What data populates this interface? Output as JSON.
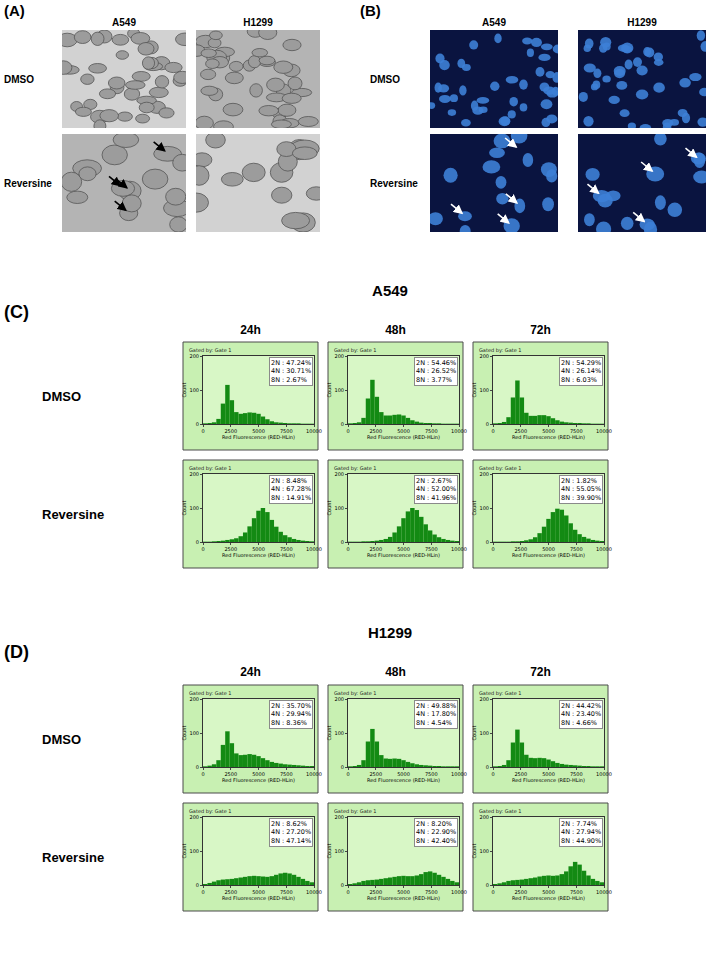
{
  "figure": {
    "panels": [
      {
        "label": "(A)",
        "columns": [
          "A549",
          "H1299"
        ],
        "rows": [
          "DMSO",
          "Reversine"
        ]
      },
      {
        "label": "(B)",
        "columns": [
          "A549",
          "H1299"
        ],
        "rows": [
          "DMSO",
          "Reversine"
        ]
      }
    ],
    "sections": [
      {
        "label": "(C)",
        "title": "A549",
        "columns": [
          "24h",
          "48h",
          "72h"
        ],
        "rows": [
          "DMSO",
          "Reversine"
        ]
      },
      {
        "label": "(D)",
        "title": "H1299",
        "columns": [
          "24h",
          "48h",
          "72h"
        ],
        "rows": [
          "DMSO",
          "Reversine"
        ]
      }
    ]
  },
  "chart_data": [
    {
      "type": "histogram",
      "subtitle": "Gated by: Gate 1",
      "xlabel": "Red Fluorescence (RED-HLin)",
      "ylabel": "Count",
      "bins": [
        0,
        400,
        800,
        1200,
        1600,
        2000,
        2400,
        2800,
        3200,
        3600,
        4000,
        4400,
        4800,
        5200,
        5600,
        6000,
        6400,
        6800,
        7200,
        7600,
        8000,
        8400,
        8800,
        9200,
        9600,
        10000
      ],
      "counts": [
        2,
        3,
        5,
        15,
        60,
        115,
        70,
        35,
        30,
        32,
        34,
        33,
        30,
        22,
        14,
        8,
        5,
        4,
        3,
        2,
        2,
        2,
        1,
        1,
        1
      ],
      "color": "#138a13",
      "xlim": [
        0,
        10000
      ],
      "ylim": [
        0,
        200
      ],
      "xticks": [
        0,
        2500,
        5000,
        7500,
        10000
      ],
      "yticks": [
        0,
        100,
        200
      ],
      "annotations": [
        "2N : 47.24%",
        "4N : 30.71%",
        "8N : 2.67%"
      ]
    },
    {
      "type": "histogram",
      "subtitle": "Gated by: Gate 1",
      "xlabel": "Red Fluorescence (RED-HLin)",
      "ylabel": "Count",
      "bins": [
        0,
        400,
        800,
        1200,
        1600,
        2000,
        2400,
        2800,
        3200,
        3600,
        4000,
        4400,
        4800,
        5200,
        5600,
        6000,
        6400,
        6800,
        7200,
        7600,
        8000,
        8400,
        8800,
        9200,
        9600,
        10000
      ],
      "counts": [
        2,
        3,
        5,
        18,
        75,
        130,
        80,
        35,
        25,
        25,
        27,
        28,
        25,
        18,
        11,
        7,
        4,
        3,
        3,
        2,
        2,
        1,
        1,
        1,
        1
      ],
      "color": "#138a13",
      "xlim": [
        0,
        10000
      ],
      "ylim": [
        0,
        200
      ],
      "xticks": [
        0,
        2500,
        5000,
        7500,
        10000
      ],
      "yticks": [
        0,
        100,
        200
      ],
      "annotations": [
        "2N : 54.46%",
        "4N : 26.52%",
        "8N : 3.77%"
      ]
    },
    {
      "type": "histogram",
      "subtitle": "Gated by: Gate 1",
      "xlabel": "Red Fluorescence (RED-HLin)",
      "ylabel": "Count",
      "bins": [
        0,
        400,
        800,
        1200,
        1600,
        2000,
        2400,
        2800,
        3200,
        3600,
        4000,
        4400,
        4800,
        5200,
        5600,
        6000,
        6400,
        6800,
        7200,
        7600,
        8000,
        8400,
        8800,
        9200,
        9600,
        10000
      ],
      "counts": [
        2,
        3,
        6,
        20,
        78,
        128,
        78,
        33,
        24,
        24,
        26,
        26,
        23,
        17,
        11,
        7,
        5,
        4,
        3,
        3,
        2,
        2,
        1,
        1,
        1
      ],
      "color": "#138a13",
      "xlim": [
        0,
        10000
      ],
      "ylim": [
        0,
        200
      ],
      "xticks": [
        0,
        2500,
        5000,
        7500,
        10000
      ],
      "yticks": [
        0,
        100,
        200
      ],
      "annotations": [
        "2N : 54.29%",
        "4N : 26.14%",
        "8N : 6.03%"
      ]
    },
    {
      "type": "histogram",
      "subtitle": "Gated by: Gate 1",
      "xlabel": "Red Fluorescence (RED-HLin)",
      "ylabel": "Count",
      "bins": [
        0,
        400,
        800,
        1200,
        1600,
        2000,
        2400,
        2800,
        3200,
        3600,
        4000,
        4400,
        4800,
        5200,
        5600,
        6000,
        6400,
        6800,
        7200,
        7600,
        8000,
        8400,
        8800,
        9200,
        9600,
        10000
      ],
      "counts": [
        1,
        1,
        2,
        3,
        4,
        6,
        8,
        11,
        17,
        28,
        46,
        70,
        92,
        100,
        88,
        65,
        45,
        30,
        20,
        14,
        9,
        6,
        4,
        3,
        2
      ],
      "color": "#138a13",
      "xlim": [
        0,
        10000
      ],
      "ylim": [
        0,
        200
      ],
      "xticks": [
        0,
        2500,
        5000,
        7500,
        10000
      ],
      "yticks": [
        0,
        100,
        200
      ],
      "annotations": [
        "2N : 8.48%",
        "4N : 67.28%",
        "8N : 14.91%"
      ]
    },
    {
      "type": "histogram",
      "subtitle": "Gated by: Gate 1",
      "xlabel": "Red Fluorescence (RED-HLin)",
      "ylabel": "Count",
      "bins": [
        0,
        400,
        800,
        1200,
        1600,
        2000,
        2400,
        2800,
        3200,
        3600,
        4000,
        4400,
        4800,
        5200,
        5600,
        6000,
        6400,
        6800,
        7200,
        7600,
        8000,
        8400,
        8800,
        9200,
        9600,
        10000
      ],
      "counts": [
        1,
        1,
        1,
        2,
        2,
        3,
        4,
        6,
        9,
        15,
        28,
        46,
        70,
        90,
        100,
        94,
        74,
        52,
        34,
        22,
        14,
        9,
        6,
        4,
        3
      ],
      "color": "#138a13",
      "xlim": [
        0,
        10000
      ],
      "ylim": [
        0,
        200
      ],
      "xticks": [
        0,
        2500,
        5000,
        7500,
        10000
      ],
      "yticks": [
        0,
        100,
        200
      ],
      "annotations": [
        "2N : 2.67%",
        "4N : 52.00%",
        "8N : 41.96%"
      ]
    },
    {
      "type": "histogram",
      "subtitle": "Gated by: Gate 1",
      "xlabel": "Red Fluorescence (RED-HLin)",
      "ylabel": "Count",
      "bins": [
        0,
        400,
        800,
        1200,
        1600,
        2000,
        2400,
        2800,
        3200,
        3600,
        4000,
        4400,
        4800,
        5200,
        5600,
        6000,
        6400,
        6800,
        7200,
        7600,
        8000,
        8400,
        8800,
        9200,
        9600,
        10000
      ],
      "counts": [
        1,
        1,
        1,
        1,
        2,
        2,
        3,
        5,
        8,
        14,
        26,
        45,
        68,
        88,
        98,
        95,
        78,
        55,
        36,
        23,
        15,
        10,
        6,
        4,
        3
      ],
      "color": "#138a13",
      "xlim": [
        0,
        10000
      ],
      "ylim": [
        0,
        200
      ],
      "xticks": [
        0,
        2500,
        5000,
        7500,
        10000
      ],
      "yticks": [
        0,
        100,
        200
      ],
      "annotations": [
        "2N : 1.82%",
        "4N : 55.05%",
        "8N : 39.90%"
      ]
    },
    {
      "type": "histogram",
      "subtitle": "Gated by: Gate 1",
      "xlabel": "Red Fluorescence (RED-HLin)",
      "ylabel": "Count",
      "bins": [
        0,
        400,
        800,
        1200,
        1600,
        2000,
        2400,
        2800,
        3200,
        3600,
        4000,
        4400,
        4800,
        5200,
        5600,
        6000,
        6400,
        6800,
        7200,
        7600,
        8000,
        8400,
        8800,
        9200,
        9600,
        10000
      ],
      "counts": [
        2,
        4,
        8,
        20,
        65,
        105,
        70,
        40,
        35,
        36,
        38,
        36,
        32,
        26,
        20,
        15,
        12,
        10,
        8,
        7,
        6,
        5,
        4,
        3,
        3
      ],
      "color": "#138a13",
      "xlim": [
        0,
        10000
      ],
      "ylim": [
        0,
        200
      ],
      "xticks": [
        0,
        2500,
        5000,
        7500,
        10000
      ],
      "yticks": [
        0,
        100,
        200
      ],
      "annotations": [
        "2N : 35.70%",
        "4N : 29.94%",
        "8N : 8.36%"
      ]
    },
    {
      "type": "histogram",
      "subtitle": "Gated by: Gate 1",
      "xlabel": "Red Fluorescence (RED-HLin)",
      "ylabel": "Count",
      "bins": [
        0,
        400,
        800,
        1200,
        1600,
        2000,
        2400,
        2800,
        3200,
        3600,
        4000,
        4400,
        4800,
        5200,
        5600,
        6000,
        6400,
        6800,
        7200,
        7600,
        8000,
        8400,
        8800,
        9200,
        9600,
        10000
      ],
      "counts": [
        2,
        3,
        6,
        20,
        75,
        112,
        75,
        35,
        25,
        24,
        25,
        24,
        20,
        15,
        11,
        8,
        6,
        5,
        4,
        3,
        3,
        2,
        2,
        2,
        2
      ],
      "color": "#138a13",
      "xlim": [
        0,
        10000
      ],
      "ylim": [
        0,
        200
      ],
      "xticks": [
        0,
        2500,
        5000,
        7500,
        10000
      ],
      "yticks": [
        0,
        100,
        200
      ],
      "annotations": [
        "2N : 49.88%",
        "4N : 17.80%",
        "8N : 4.54%"
      ]
    },
    {
      "type": "histogram",
      "subtitle": "Gated by: Gate 1",
      "xlabel": "Red Fluorescence (RED-HLin)",
      "ylabel": "Count",
      "bins": [
        0,
        400,
        800,
        1200,
        1600,
        2000,
        2400,
        2800,
        3200,
        3600,
        4000,
        4400,
        4800,
        5200,
        5600,
        6000,
        6400,
        6800,
        7200,
        7600,
        8000,
        8400,
        8800,
        9200,
        9600,
        10000
      ],
      "counts": [
        2,
        3,
        6,
        20,
        72,
        110,
        72,
        36,
        27,
        26,
        27,
        26,
        22,
        17,
        12,
        9,
        7,
        6,
        5,
        4,
        3,
        3,
        2,
        2,
        2
      ],
      "color": "#138a13",
      "xlim": [
        0,
        10000
      ],
      "ylim": [
        0,
        200
      ],
      "xticks": [
        0,
        2500,
        5000,
        7500,
        10000
      ],
      "yticks": [
        0,
        100,
        200
      ],
      "annotations": [
        "2N : 44.42%",
        "4N : 23.40%",
        "8N : 4.66%"
      ]
    },
    {
      "type": "histogram",
      "subtitle": "Gated by: Gate 1",
      "xlabel": "Red Fluorescence (RED-HLin)",
      "ylabel": "Count",
      "bins": [
        0,
        400,
        800,
        1200,
        1600,
        2000,
        2400,
        2800,
        3200,
        3600,
        4000,
        4400,
        4800,
        5200,
        5600,
        6000,
        6400,
        6800,
        7200,
        7600,
        8000,
        8400,
        8800,
        9200,
        9600,
        10000
      ],
      "counts": [
        3,
        6,
        10,
        14,
        16,
        17,
        18,
        20,
        22,
        24,
        26,
        27,
        26,
        25,
        24,
        26,
        30,
        34,
        36,
        34,
        30,
        24,
        18,
        12,
        8
      ],
      "color": "#138a13",
      "xlim": [
        0,
        10000
      ],
      "ylim": [
        0,
        200
      ],
      "xticks": [
        0,
        2500,
        5000,
        7500,
        10000
      ],
      "yticks": [
        0,
        100,
        200
      ],
      "annotations": [
        "2N : 8.62%",
        "4N : 27.20%",
        "8N : 47.14%"
      ]
    },
    {
      "type": "histogram",
      "subtitle": "Gated by: Gate 1",
      "xlabel": "Red Fluorescence (RED-HLin)",
      "ylabel": "Count",
      "bins": [
        0,
        400,
        800,
        1200,
        1600,
        2000,
        2400,
        2800,
        3200,
        3600,
        4000,
        4400,
        4800,
        5200,
        5600,
        6000,
        6400,
        6800,
        7200,
        7600,
        8000,
        8400,
        8800,
        9200,
        9600,
        10000
      ],
      "counts": [
        3,
        5,
        8,
        12,
        14,
        15,
        16,
        18,
        20,
        22,
        24,
        26,
        27,
        26,
        26,
        28,
        32,
        38,
        40,
        36,
        30,
        24,
        18,
        12,
        8
      ],
      "color": "#138a13",
      "xlim": [
        0,
        10000
      ],
      "ylim": [
        0,
        200
      ],
      "xticks": [
        0,
        2500,
        5000,
        7500,
        10000
      ],
      "yticks": [
        0,
        100,
        200
      ],
      "annotations": [
        "2N : 8.20%",
        "4N : 22.90%",
        "8N : 42.40%"
      ]
    },
    {
      "type": "histogram",
      "subtitle": "Gated by: Gate 1",
      "xlabel": "Red Fluorescence (RED-HLin)",
      "ylabel": "Count",
      "bins": [
        0,
        400,
        800,
        1200,
        1600,
        2000,
        2400,
        2800,
        3200,
        3600,
        4000,
        4400,
        4800,
        5200,
        5600,
        6000,
        6400,
        6800,
        7200,
        7600,
        8000,
        8400,
        8800,
        9200,
        9600,
        10000
      ],
      "counts": [
        3,
        5,
        8,
        12,
        14,
        15,
        16,
        18,
        20,
        22,
        25,
        27,
        28,
        27,
        28,
        32,
        40,
        55,
        68,
        60,
        42,
        28,
        18,
        12,
        8
      ],
      "color": "#138a13",
      "xlim": [
        0,
        10000
      ],
      "ylim": [
        0,
        200
      ],
      "xticks": [
        0,
        2500,
        5000,
        7500,
        10000
      ],
      "yticks": [
        0,
        100,
        200
      ],
      "annotations": [
        "2N : 7.74%",
        "4N : 27.94%",
        "8N : 44.90%"
      ]
    }
  ]
}
